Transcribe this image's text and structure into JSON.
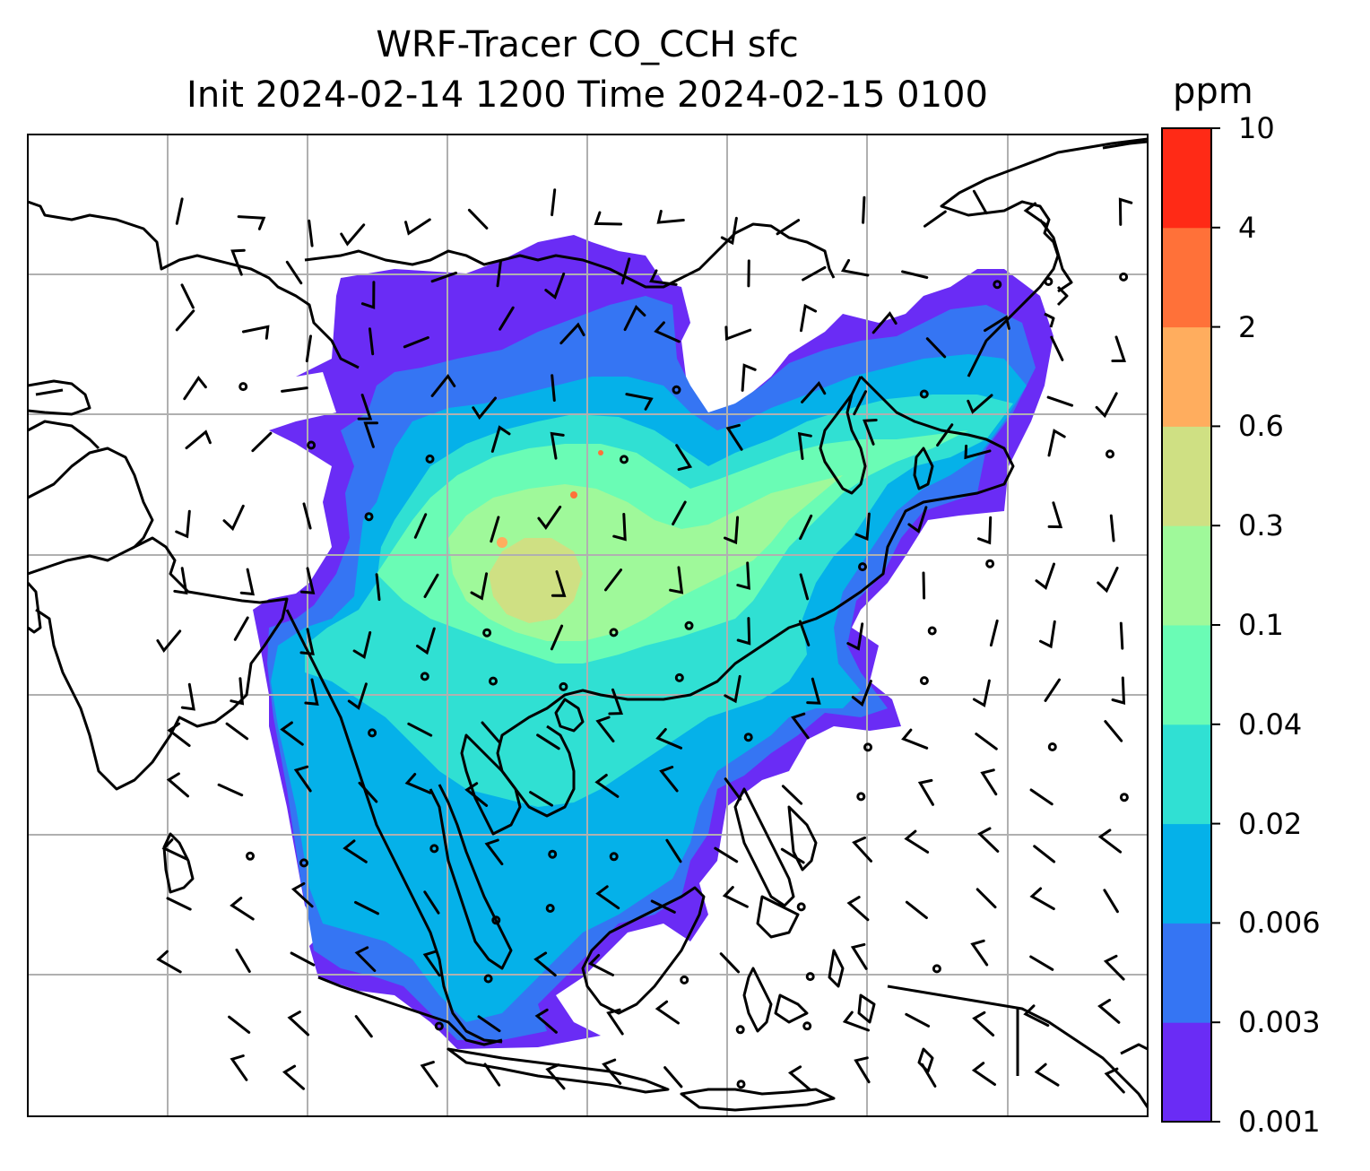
{
  "title": {
    "line1": "WRF-Tracer CO_CCH sfc",
    "line2": "Init 2024-02-14 1200 Time 2024-02-15 0100"
  },
  "colorbar": {
    "units": "ppm",
    "levels": [
      "0.001",
      "0.003",
      "0.006",
      "0.02",
      "0.04",
      "0.1",
      "0.3",
      "0.6",
      "2",
      "4",
      "10"
    ],
    "colors": [
      "#6a2cf5",
      "#3575f3",
      "#05b1e9",
      "#30e0d3",
      "#6afcb5",
      "#9ff99a",
      "#cfe083",
      "#ffad5e",
      "#ff7139",
      "#ff2a16"
    ]
  },
  "map": {
    "gridline_color": "#b0b0b0",
    "coastline_color": "#000000",
    "wind_barb_color": "#000000"
  }
}
